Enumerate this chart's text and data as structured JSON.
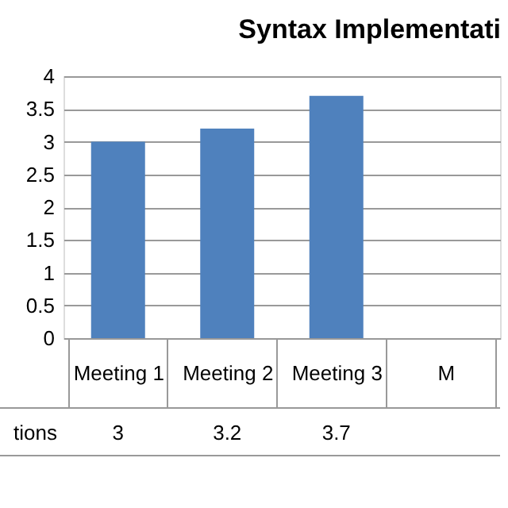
{
  "chart_data": {
    "type": "bar",
    "title": "Syntax Implementati",
    "categories": [
      "Meeting 1",
      "Meeting 2",
      "Meeting 3",
      "M"
    ],
    "series": [
      {
        "name": "tions",
        "color": "#4f81bd",
        "values": [
          3,
          3.2,
          3.7,
          null
        ]
      }
    ],
    "ylim": [
      0,
      4
    ],
    "yticks": [
      0,
      0.5,
      1,
      1.5,
      2,
      2.5,
      3,
      3.5,
      4
    ],
    "grid": "y",
    "data_labels": true
  }
}
